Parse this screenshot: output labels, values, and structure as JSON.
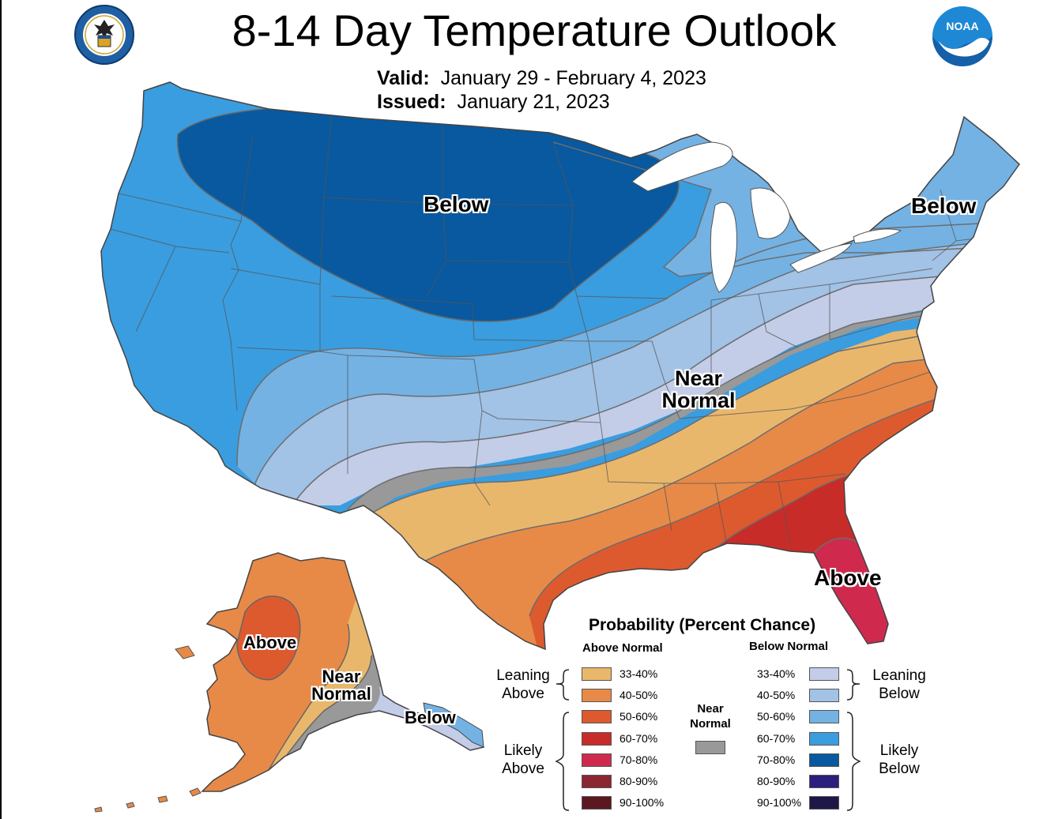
{
  "header": {
    "title": "8-14 Day Temperature Outlook",
    "valid_label": "Valid:",
    "valid_value": "January 29 - February 4, 2023",
    "issued_label": "Issued:",
    "issued_value": "January 21, 2023"
  },
  "logos": {
    "doc_seal": "department-of-commerce-seal",
    "noaa": "NOAA"
  },
  "map_labels": {
    "conus_north": "Below",
    "northeast": "Below",
    "near_normal_line1": "Near",
    "near_normal_line2": "Normal",
    "southeast": "Above",
    "alaska_above": "Above",
    "alaska_near_line1": "Near",
    "alaska_near_line2": "Normal",
    "alaska_below": "Below"
  },
  "legend": {
    "title": "Probability (Percent Chance)",
    "above_header": "Above Normal",
    "below_header": "Below Normal",
    "near_label_line1": "Near",
    "near_label_line2": "Normal",
    "leaning_above": "Leaning Above",
    "likely_above": "Likely Above",
    "leaning_below": "Leaning Below",
    "likely_below": "Likely Below",
    "above": [
      {
        "label": "33-40%",
        "color": "#e9b76c"
      },
      {
        "label": "40-50%",
        "color": "#e78a48"
      },
      {
        "label": "50-60%",
        "color": "#dd5a2e"
      },
      {
        "label": "60-70%",
        "color": "#c82c28"
      },
      {
        "label": "70-80%",
        "color": "#cf2a4d"
      },
      {
        "label": "80-90%",
        "color": "#8b2633"
      },
      {
        "label": "90-100%",
        "color": "#5b1820"
      }
    ],
    "below": [
      {
        "label": "33-40%",
        "color": "#c3cde8"
      },
      {
        "label": "40-50%",
        "color": "#a2c2e6"
      },
      {
        "label": "50-60%",
        "color": "#74b2e4"
      },
      {
        "label": "60-70%",
        "color": "#3a9ddf"
      },
      {
        "label": "70-80%",
        "color": "#08599f"
      },
      {
        "label": "80-90%",
        "color": "#2a1f7c"
      },
      {
        "label": "90-100%",
        "color": "#1d1848"
      }
    ],
    "near_color": "#999999"
  }
}
